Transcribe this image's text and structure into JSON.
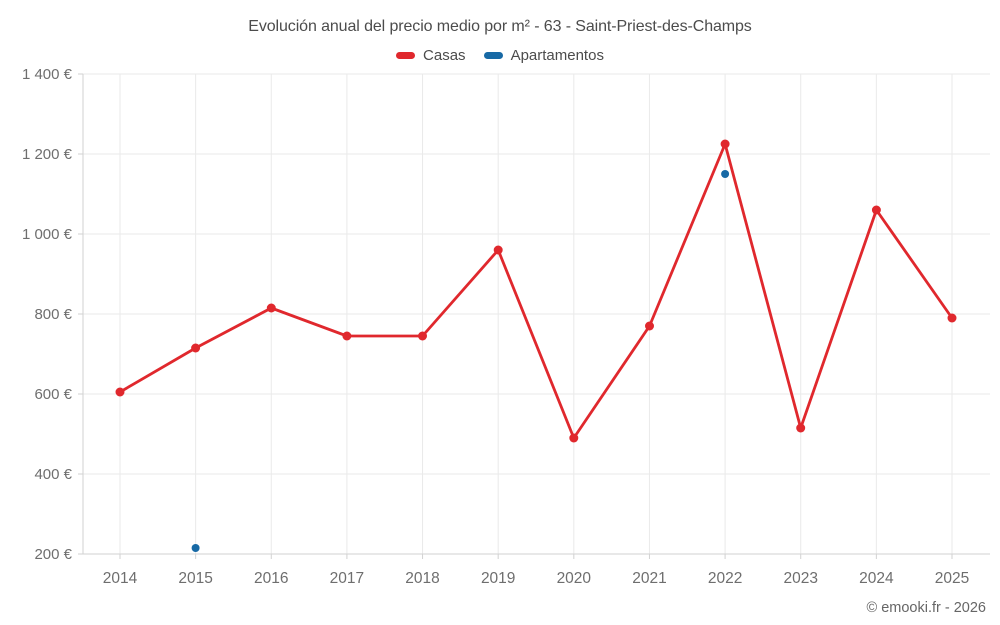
{
  "title": "Evolución anual del precio medio por m² - 63 - Saint-Priest-des-Champs",
  "footer_credit": "© emooki.fr - 2026",
  "colors": {
    "casas": "#e0282d",
    "apartamentos": "#1769a5",
    "grid": "#eaeaea",
    "axis": "#d2d2d2",
    "tick_label": "#6e6e6e"
  },
  "legend": [
    {
      "label": "Casas",
      "color": "#e0282d"
    },
    {
      "label": "Apartamentos",
      "color": "#1769a5"
    }
  ],
  "chart_data": {
    "type": "line",
    "title": "Evolución anual del precio medio por m² - 63 - Saint-Priest-des-Champs",
    "xlabel": "",
    "ylabel": "",
    "x": [
      2014,
      2015,
      2016,
      2017,
      2018,
      2019,
      2020,
      2021,
      2022,
      2023,
      2024,
      2025
    ],
    "x_tick_labels": [
      "2014",
      "2015",
      "2016",
      "2017",
      "2018",
      "2019",
      "2020",
      "2021",
      "2022",
      "2023",
      "2024",
      "2025"
    ],
    "series": [
      {
        "name": "Casas",
        "color": "#e0282d",
        "style": "line-with-points",
        "values": [
          605,
          715,
          815,
          745,
          745,
          960,
          490,
          770,
          1225,
          515,
          1060,
          790
        ]
      },
      {
        "name": "Apartamentos",
        "color": "#1769a5",
        "style": "points-only",
        "values": [
          null,
          215,
          null,
          null,
          null,
          null,
          null,
          null,
          1150,
          null,
          null,
          null
        ]
      }
    ],
    "ylim": [
      200,
      1400
    ],
    "y_tick_step": 200,
    "y_tick_values": [
      200,
      400,
      600,
      800,
      1000,
      1200,
      1400
    ],
    "y_tick_labels": [
      "200 €",
      "400 €",
      "600 €",
      "800 €",
      "1 000 €",
      "1 200 €",
      "1 400 €"
    ],
    "grid": true,
    "legend_position": "top",
    "currency_suffix": "€"
  }
}
